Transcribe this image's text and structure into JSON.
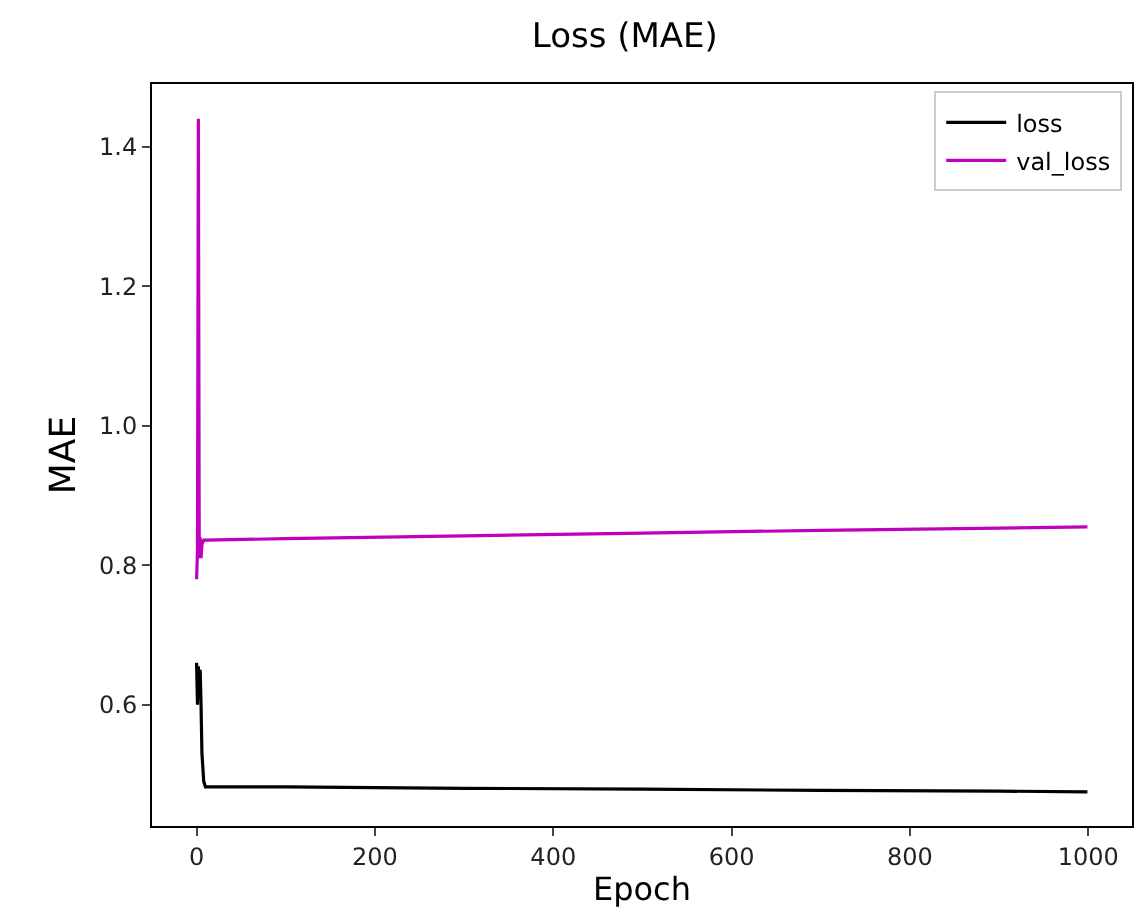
{
  "chart_data": {
    "type": "line",
    "title": "Loss (MAE)",
    "xlabel": "Epoch",
    "ylabel": "MAE",
    "series": [
      {
        "name": "loss",
        "color": "#000000",
        "x": [
          0,
          1,
          2,
          3,
          4,
          5,
          6,
          8,
          10,
          15,
          100,
          300,
          500,
          700,
          900,
          999
        ],
        "values": [
          0.66,
          0.6,
          0.655,
          0.63,
          0.65,
          0.6,
          0.53,
          0.49,
          0.482,
          0.482,
          0.482,
          0.48,
          0.479,
          0.477,
          0.476,
          0.475
        ]
      },
      {
        "name": "val_loss",
        "color": "#bf00bf",
        "x": [
          0,
          1,
          2,
          3,
          4,
          5,
          6,
          8,
          10,
          100,
          300,
          500,
          700,
          900,
          999
        ],
        "values": [
          0.78,
          0.82,
          1.44,
          0.81,
          0.84,
          0.81,
          0.83,
          0.836,
          0.836,
          0.838,
          0.842,
          0.846,
          0.85,
          0.853,
          0.855
        ]
      }
    ],
    "xlim": [
      -50,
      1049
    ],
    "xticks": [
      0,
      200,
      400,
      600,
      800,
      1000
    ],
    "ylim": [
      0.426,
      1.49
    ],
    "yticks": [
      {
        "value": 0.6,
        "label": "0.6"
      },
      {
        "value": 0.8,
        "label": "0.8"
      },
      {
        "value": 1,
        "label": "1.0"
      },
      {
        "value": 1.2,
        "label": "1.2"
      },
      {
        "value": 1.4,
        "label": "1.4"
      }
    ],
    "legend": "top right"
  }
}
